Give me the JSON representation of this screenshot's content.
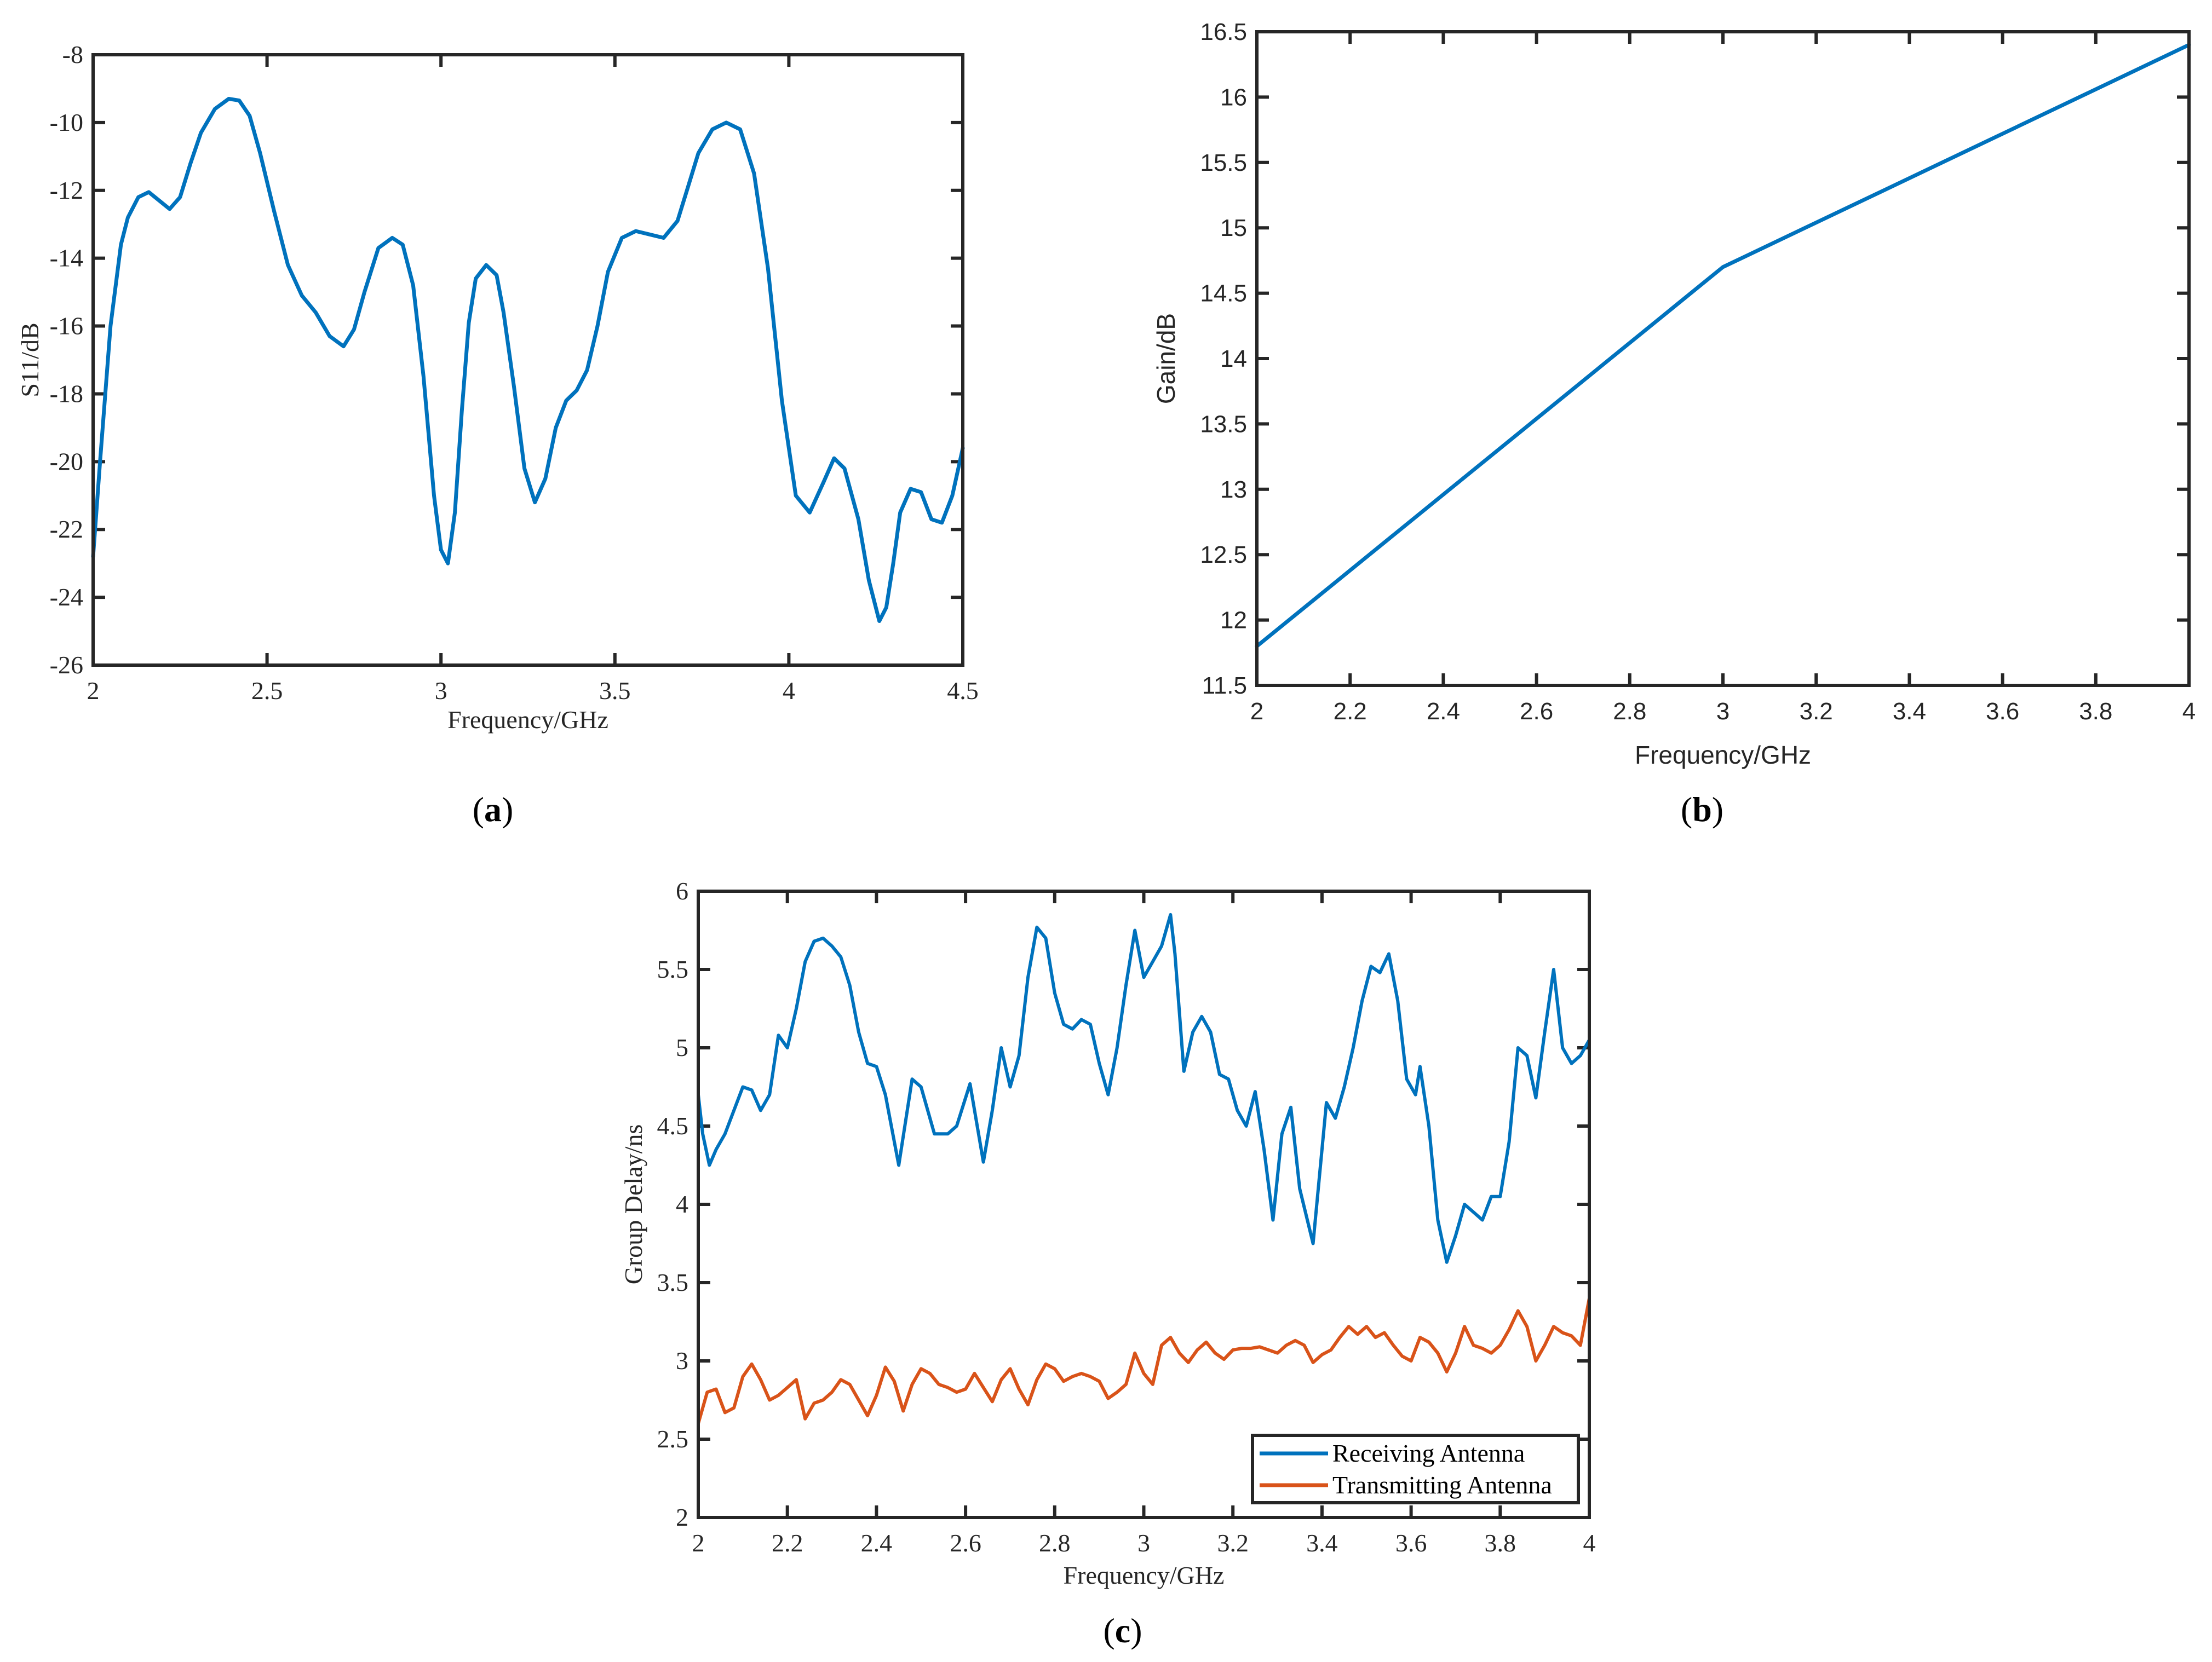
{
  "colors": {
    "axis": "#262626",
    "blue": "#0072BD",
    "orange": "#D95319",
    "background": "#FFFFFF"
  },
  "chart_data": [
    {
      "id": "a",
      "caption": "a",
      "type": "line",
      "title": "",
      "xlabel": "Frequency/GHz",
      "ylabel": "S11/dB",
      "xlim": [
        2,
        4.5
      ],
      "ylim": [
        -26,
        -8
      ],
      "xticks": [
        2,
        2.5,
        3,
        3.5,
        4,
        4.5
      ],
      "xtick_labels": [
        "2",
        "2.5",
        "3",
        "3.5",
        "4",
        "4.5"
      ],
      "yticks": [
        -26,
        -24,
        -22,
        -20,
        -18,
        -16,
        -14,
        -12,
        -10,
        -8
      ],
      "ytick_labels": [
        "-26",
        "-24",
        "-22",
        "-20",
        "-18",
        "-16",
        "-14",
        "-12",
        "-10",
        "-8"
      ],
      "grid": false,
      "legend": null,
      "series": [
        {
          "name": "S11",
          "color": "#0072BD",
          "x": [
            2.0,
            2.02,
            2.05,
            2.08,
            2.1,
            2.13,
            2.16,
            2.19,
            2.22,
            2.25,
            2.28,
            2.31,
            2.35,
            2.39,
            2.42,
            2.45,
            2.48,
            2.52,
            2.56,
            2.6,
            2.64,
            2.68,
            2.72,
            2.75,
            2.78,
            2.82,
            2.86,
            2.89,
            2.92,
            2.95,
            2.98,
            3.0,
            3.02,
            3.04,
            3.06,
            3.08,
            3.1,
            3.13,
            3.16,
            3.18,
            3.21,
            3.24,
            3.27,
            3.3,
            3.33,
            3.36,
            3.39,
            3.42,
            3.45,
            3.48,
            3.52,
            3.56,
            3.6,
            3.64,
            3.68,
            3.71,
            3.74,
            3.78,
            3.82,
            3.86,
            3.9,
            3.94,
            3.98,
            4.02,
            4.06,
            4.1,
            4.13,
            4.16,
            4.2,
            4.23,
            4.26,
            4.28,
            4.3,
            4.32,
            4.35,
            4.38,
            4.41,
            4.44,
            4.47,
            4.5
          ],
          "y": [
            -22.8,
            -20.0,
            -16.0,
            -13.6,
            -12.8,
            -12.2,
            -12.05,
            -12.3,
            -12.55,
            -12.2,
            -11.2,
            -10.3,
            -9.6,
            -9.3,
            -9.35,
            -9.8,
            -10.9,
            -12.6,
            -14.2,
            -15.1,
            -15.6,
            -16.3,
            -16.6,
            -16.1,
            -15.0,
            -13.7,
            -13.4,
            -13.6,
            -14.8,
            -17.5,
            -21.0,
            -22.6,
            -23.0,
            -21.5,
            -18.5,
            -15.9,
            -14.6,
            -14.2,
            -14.5,
            -15.6,
            -17.8,
            -20.2,
            -21.2,
            -20.5,
            -19.0,
            -18.2,
            -17.9,
            -17.3,
            -16.0,
            -14.4,
            -13.4,
            -13.2,
            -13.3,
            -13.4,
            -12.9,
            -11.9,
            -10.9,
            -10.2,
            -10.0,
            -10.2,
            -11.5,
            -14.3,
            -18.2,
            -21.0,
            -21.5,
            -20.6,
            -19.9,
            -20.2,
            -21.7,
            -23.5,
            -24.7,
            -24.3,
            -23.0,
            -21.5,
            -20.8,
            -20.9,
            -21.7,
            -21.8,
            -21.0,
            -19.6
          ]
        }
      ]
    },
    {
      "id": "b",
      "caption": "b",
      "type": "line",
      "title": "",
      "xlabel": "Frequency/GHz",
      "ylabel": "Gain/dB",
      "xlim": [
        2,
        4
      ],
      "ylim": [
        11.5,
        16.5
      ],
      "xticks": [
        2,
        2.2,
        2.4,
        2.6,
        2.8,
        3,
        3.2,
        3.4,
        3.6,
        3.8,
        4
      ],
      "xtick_labels": [
        "2",
        "2.2",
        "2.4",
        "2.6",
        "2.8",
        "3",
        "3.2",
        "3.4",
        "3.6",
        "3.8",
        "4"
      ],
      "yticks": [
        11.5,
        12,
        12.5,
        13,
        13.5,
        14,
        14.5,
        15,
        15.5,
        16,
        16.5
      ],
      "ytick_labels": [
        "11.5",
        "12",
        "12.5",
        "13",
        "13.5",
        "14",
        "14.5",
        "15",
        "15.5",
        "16",
        "16.5"
      ],
      "grid": false,
      "legend": null,
      "series": [
        {
          "name": "Gain",
          "color": "#0072BD",
          "x": [
            2.0,
            3.0,
            4.0
          ],
          "y": [
            11.8,
            14.7,
            16.4
          ]
        }
      ]
    },
    {
      "id": "c",
      "caption": "c",
      "type": "line",
      "title": "",
      "xlabel": "Frequency/GHz",
      "ylabel": "Group Delay/ns",
      "xlim": [
        2,
        4
      ],
      "ylim": [
        2,
        6
      ],
      "xticks": [
        2,
        2.2,
        2.4,
        2.6,
        2.8,
        3,
        3.2,
        3.4,
        3.6,
        3.8,
        4
      ],
      "xtick_labels": [
        "2",
        "2.2",
        "2.4",
        "2.6",
        "2.8",
        "3",
        "3.2",
        "3.4",
        "3.6",
        "3.8",
        "4"
      ],
      "yticks": [
        2,
        2.5,
        3,
        3.5,
        4,
        4.5,
        5,
        5.5,
        6
      ],
      "ytick_labels": [
        "2",
        "2.5",
        "3",
        "3.5",
        "4",
        "4.5",
        "5",
        "5.5",
        "6"
      ],
      "grid": false,
      "legend": {
        "position": "lower right",
        "entries": [
          "Receiving Antenna",
          "Transmitting Antenna"
        ]
      },
      "series": [
        {
          "name": "Receiving Antenna",
          "color": "#0072BD",
          "x": [
            2.0,
            2.01,
            2.025,
            2.04,
            2.06,
            2.08,
            2.1,
            2.12,
            2.14,
            2.16,
            2.18,
            2.2,
            2.22,
            2.24,
            2.26,
            2.28,
            2.3,
            2.32,
            2.34,
            2.36,
            2.38,
            2.4,
            2.42,
            2.45,
            2.48,
            2.5,
            2.53,
            2.56,
            2.58,
            2.61,
            2.64,
            2.66,
            2.68,
            2.7,
            2.72,
            2.74,
            2.76,
            2.78,
            2.8,
            2.82,
            2.84,
            2.86,
            2.88,
            2.9,
            2.92,
            2.94,
            2.96,
            2.98,
            3.0,
            3.02,
            3.04,
            3.06,
            3.07,
            3.09,
            3.11,
            3.13,
            3.15,
            3.17,
            3.19,
            3.21,
            3.23,
            3.25,
            3.27,
            3.29,
            3.31,
            3.33,
            3.35,
            3.38,
            3.41,
            3.43,
            3.45,
            3.47,
            3.49,
            3.51,
            3.53,
            3.55,
            3.57,
            3.59,
            3.61,
            3.62,
            3.64,
            3.66,
            3.68,
            3.7,
            3.72,
            3.74,
            3.76,
            3.78,
            3.8,
            3.82,
            3.84,
            3.86,
            3.88,
            3.9,
            3.92,
            3.94,
            3.96,
            3.98,
            4.0
          ],
          "y": [
            4.7,
            4.45,
            4.25,
            4.35,
            4.45,
            4.6,
            4.75,
            4.73,
            4.6,
            4.7,
            5.08,
            5.0,
            5.25,
            5.55,
            5.68,
            5.7,
            5.65,
            5.58,
            5.4,
            5.1,
            4.9,
            4.88,
            4.7,
            4.25,
            4.8,
            4.75,
            4.45,
            4.45,
            4.5,
            4.77,
            4.27,
            4.6,
            5.0,
            4.75,
            4.95,
            5.45,
            5.77,
            5.7,
            5.35,
            5.15,
            5.12,
            5.18,
            5.15,
            4.9,
            4.7,
            5.0,
            5.4,
            5.75,
            5.45,
            5.55,
            5.65,
            5.85,
            5.6,
            4.85,
            5.1,
            5.2,
            5.1,
            4.83,
            4.8,
            4.6,
            4.5,
            4.72,
            4.35,
            3.9,
            4.45,
            4.62,
            4.1,
            3.75,
            4.65,
            4.55,
            4.75,
            5.0,
            5.3,
            5.52,
            5.48,
            5.6,
            5.3,
            4.8,
            4.7,
            4.88,
            4.5,
            3.9,
            3.63,
            3.8,
            4.0,
            3.95,
            3.9,
            4.05,
            4.05,
            4.4,
            5.0,
            4.95,
            4.68,
            5.1,
            5.5,
            5.0,
            4.9,
            4.95,
            5.05
          ]
        },
        {
          "name": "Transmitting Antenna",
          "color": "#D95319",
          "x": [
            2.0,
            2.02,
            2.04,
            2.06,
            2.08,
            2.1,
            2.12,
            2.14,
            2.16,
            2.18,
            2.2,
            2.22,
            2.24,
            2.26,
            2.28,
            2.3,
            2.32,
            2.34,
            2.36,
            2.38,
            2.4,
            2.42,
            2.44,
            2.46,
            2.48,
            2.5,
            2.52,
            2.54,
            2.56,
            2.58,
            2.6,
            2.62,
            2.64,
            2.66,
            2.68,
            2.7,
            2.72,
            2.74,
            2.76,
            2.78,
            2.8,
            2.82,
            2.84,
            2.86,
            2.88,
            2.9,
            2.92,
            2.94,
            2.96,
            2.98,
            3.0,
            3.02,
            3.04,
            3.06,
            3.08,
            3.1,
            3.12,
            3.14,
            3.16,
            3.18,
            3.2,
            3.22,
            3.24,
            3.26,
            3.28,
            3.3,
            3.32,
            3.34,
            3.36,
            3.38,
            3.4,
            3.42,
            3.44,
            3.46,
            3.48,
            3.5,
            3.52,
            3.54,
            3.56,
            3.58,
            3.6,
            3.62,
            3.64,
            3.66,
            3.68,
            3.7,
            3.72,
            3.74,
            3.76,
            3.78,
            3.8,
            3.82,
            3.84,
            3.86,
            3.88,
            3.9,
            3.92,
            3.94,
            3.96,
            3.98,
            4.0
          ],
          "y": [
            2.6,
            2.8,
            2.82,
            2.67,
            2.7,
            2.9,
            2.98,
            2.88,
            2.75,
            2.78,
            2.83,
            2.88,
            2.63,
            2.73,
            2.75,
            2.8,
            2.88,
            2.85,
            2.75,
            2.65,
            2.78,
            2.96,
            2.87,
            2.68,
            2.85,
            2.95,
            2.92,
            2.85,
            2.83,
            2.8,
            2.82,
            2.92,
            2.83,
            2.74,
            2.88,
            2.95,
            2.82,
            2.72,
            2.88,
            2.98,
            2.95,
            2.87,
            2.9,
            2.92,
            2.9,
            2.87,
            2.76,
            2.8,
            2.85,
            3.05,
            2.92,
            2.85,
            3.1,
            3.15,
            3.05,
            2.99,
            3.07,
            3.12,
            3.05,
            3.01,
            3.07,
            3.08,
            3.08,
            3.09,
            3.07,
            3.05,
            3.1,
            3.13,
            3.1,
            2.99,
            3.04,
            3.07,
            3.15,
            3.22,
            3.17,
            3.22,
            3.15,
            3.18,
            3.1,
            3.03,
            3.0,
            3.15,
            3.12,
            3.05,
            2.93,
            3.05,
            3.22,
            3.1,
            3.08,
            3.05,
            3.1,
            3.2,
            3.32,
            3.22,
            3.0,
            3.1,
            3.22,
            3.18,
            3.16,
            3.1,
            3.4
          ]
        }
      ]
    }
  ]
}
